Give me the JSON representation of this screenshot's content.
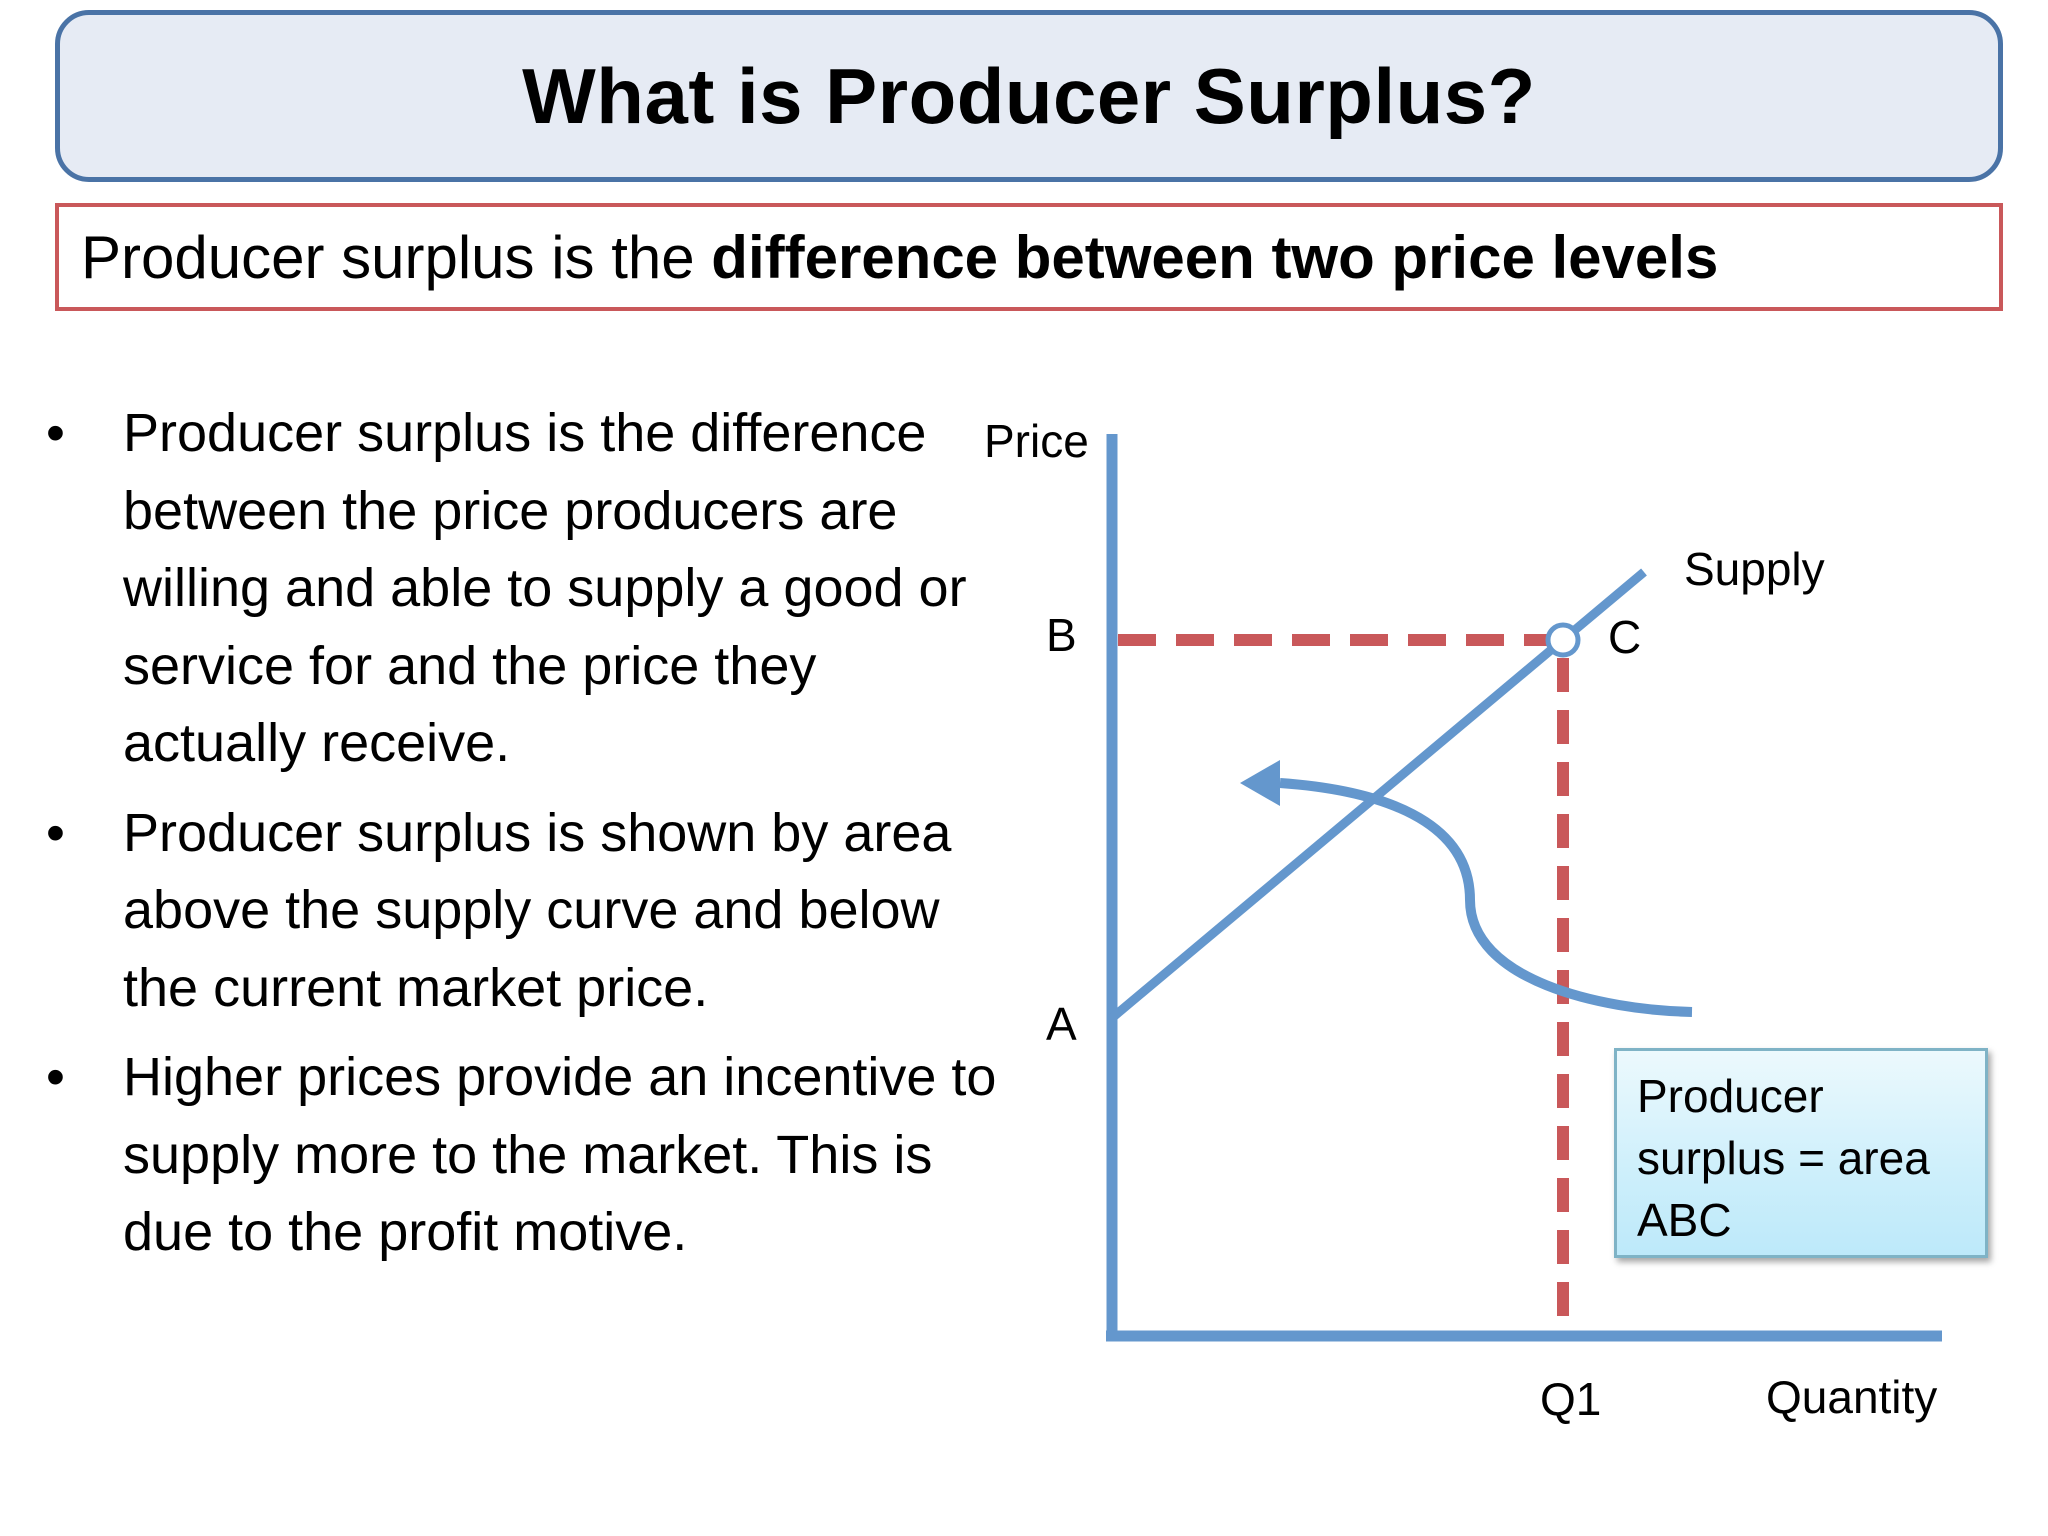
{
  "title": "What is Producer Surplus?",
  "definition": {
    "prefix": "Producer surplus is the ",
    "emphasis": "difference between two price levels"
  },
  "bullets": [
    "Producer surplus is the difference between the price producers are willing and able to supply a good or service for and the price they actually receive.",
    "Producer surplus is shown by area above the supply curve and below the current market price.",
    "Higher prices provide an incentive to supply more to the market. This is due to the profit motive."
  ],
  "bullet_symbol": "•",
  "diagram": {
    "y_axis_label": "Price",
    "x_axis_label": "Quantity",
    "curve_label": "Supply",
    "point_labels": {
      "b": "B",
      "a": "A",
      "c": "C",
      "q1": "Q1"
    },
    "note_lines": [
      "Producer",
      "surplus = area",
      "ABC"
    ],
    "colors": {
      "axis": "#6497cd",
      "supply": "#6497cd",
      "dashed": "#c9585a",
      "arrow": "#6497cd",
      "note_border": "#7fb3c6"
    }
  }
}
